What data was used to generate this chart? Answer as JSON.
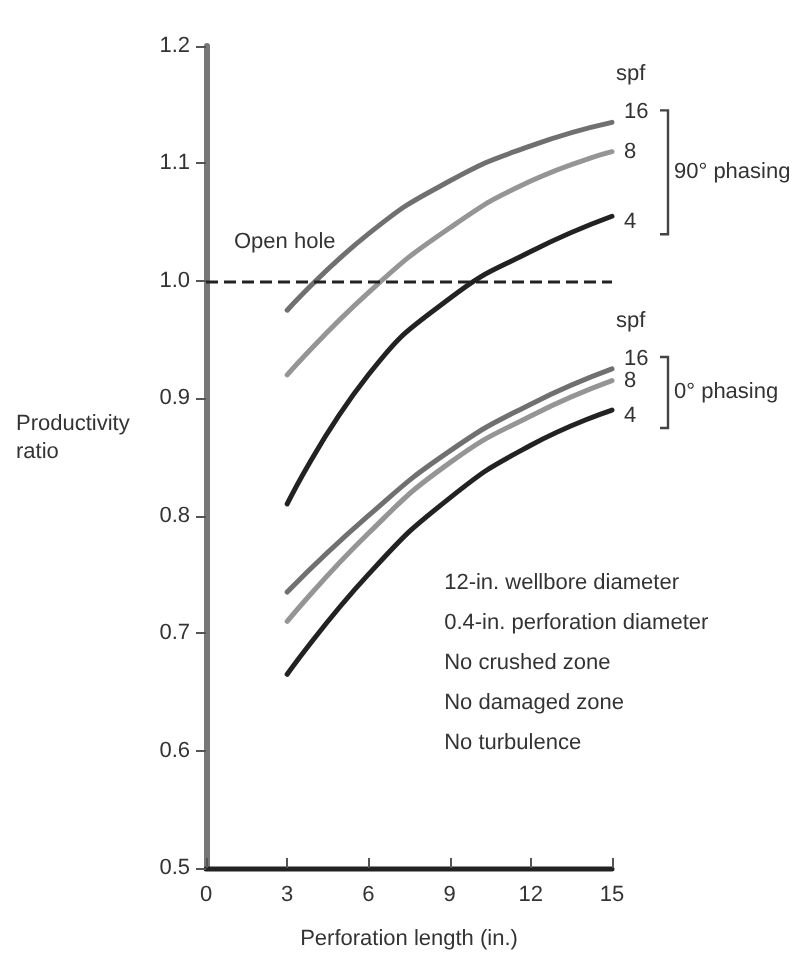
{
  "chart_data": {
    "type": "line",
    "xlabel": "Perforation length (in.)",
    "ylabel": "Productivity ratio",
    "x": [
      3,
      6,
      9,
      12,
      15
    ],
    "series": [
      {
        "name": "16",
        "color": "#707070",
        "values": [
          0.975,
          1.04,
          1.085,
          1.115,
          1.135
        ]
      },
      {
        "name": "8",
        "color": "#959595",
        "values": [
          0.92,
          0.99,
          1.045,
          1.085,
          1.11
        ]
      },
      {
        "name": "4",
        "color": "#222222",
        "values": [
          0.81,
          0.92,
          0.985,
          1.025,
          1.055
        ]
      },
      {
        "name": "16",
        "color": "#707070",
        "values": [
          0.735,
          0.8,
          0.855,
          0.895,
          0.925
        ]
      },
      {
        "name": "8",
        "color": "#959595",
        "values": [
          0.71,
          0.785,
          0.845,
          0.885,
          0.915
        ]
      },
      {
        "name": "4",
        "color": "#222222",
        "values": [
          0.665,
          0.75,
          0.815,
          0.86,
          0.89
        ]
      }
    ],
    "xlim": [
      0,
      15
    ],
    "xticks": [
      0,
      3,
      6,
      9,
      12,
      15
    ],
    "ylim": [
      0.5,
      1.2
    ],
    "yticks": [
      0.5,
      0.6,
      0.7,
      0.8,
      0.9,
      {
        "value": 1,
        "label": "1.0"
      },
      1.1,
      1.2
    ],
    "ref_lines": [
      {
        "axis": "y",
        "value": 1,
        "label": "Open hole",
        "color": "#222222",
        "line_style": "dashed"
      }
    ],
    "annotations": [
      "spf",
      "90° phasing",
      "spf",
      "0° phasing",
      "12-in. wellbore diameter",
      "0.4-in. perforation diameter",
      "No crushed zone",
      "No damaged zone",
      "No turbulence"
    ],
    "grid": false,
    "legend": false,
    "marker": "none",
    "line_style": "solid"
  }
}
